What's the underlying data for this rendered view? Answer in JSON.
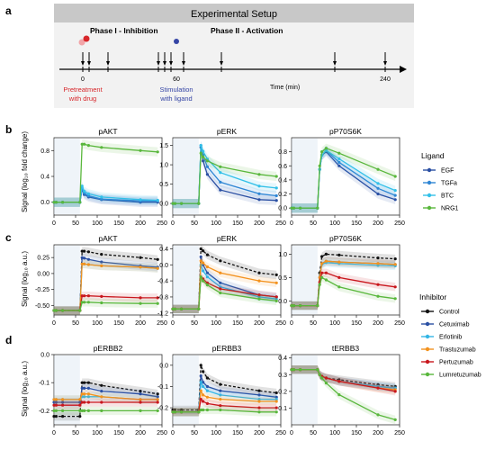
{
  "panel_letters": [
    "a",
    "b",
    "c",
    "d"
  ],
  "experimental_setup": {
    "title": "Experimental Setup",
    "phase1": "Phase I - Inhibition",
    "phase2": "Phase II - Activation",
    "tick_0": "0",
    "tick_60": "60",
    "tick_240": "240",
    "time_label": "Time (min)",
    "pretreatment_line1": "Pretreatment",
    "pretreatment_line2": "with drug",
    "stimulation_line1": "Stimulation",
    "stimulation_line2": "with ligand",
    "pretreatment_color": "#d7262a",
    "stimulation_color": "#3545a5",
    "arrow_times_min": [
      0,
      5,
      20,
      60,
      65,
      70,
      80,
      110,
      200,
      240
    ]
  },
  "legend_ligand": {
    "title": "Ligand",
    "items": [
      {
        "label": "EGF",
        "color": "#2a4fa3"
      },
      {
        "label": "TGFa",
        "color": "#2e86d4"
      },
      {
        "label": "BTC",
        "color": "#33c0e8"
      },
      {
        "label": "NRG1",
        "color": "#59b73c"
      }
    ]
  },
  "legend_inhibitor": {
    "title": "Inhibitor",
    "items": [
      {
        "label": "Control",
        "color": "#111111"
      },
      {
        "label": "Cetuximab",
        "color": "#2a4fa3"
      },
      {
        "label": "Erlotinib",
        "color": "#33b5e5"
      },
      {
        "label": "Trastuzumab",
        "color": "#f3921e"
      },
      {
        "label": "Pertuzumab",
        "color": "#c9171d"
      },
      {
        "label": "Lumretuzumab",
        "color": "#59b73c"
      }
    ]
  },
  "row_b_ylabel": "Signal (log₁₀ fold change)",
  "row_c_ylabel": "Signal (log₁₀ a.u.)",
  "row_d_ylabel": "Signal (log₁₀ a.u.)",
  "time_axis_ticks": [
    "0",
    "50",
    "100",
    "150",
    "200",
    "250"
  ],
  "chart_data": [
    {
      "type": "line",
      "panel": "b",
      "title": "pAKT",
      "xlim": [
        0,
        250
      ],
      "ylim": [
        -0.2,
        1.0
      ],
      "yticks": [
        {
          "v": 0.0,
          "l": "0.0"
        },
        {
          "v": 0.4,
          "l": "0.4"
        },
        {
          "v": 0.8,
          "l": "0.8"
        }
      ],
      "x": [
        0,
        5,
        20,
        60,
        65,
        70,
        80,
        110,
        200,
        240
      ],
      "series": [
        {
          "name": "EGF",
          "values": [
            0,
            0,
            0,
            0,
            0.2,
            0.12,
            0.08,
            0.04,
            0.0,
            0.0
          ]
        },
        {
          "name": "TGFa",
          "values": [
            0,
            0,
            0,
            0,
            0.22,
            0.14,
            0.1,
            0.05,
            0.02,
            0.02
          ]
        },
        {
          "name": "BTC",
          "values": [
            0,
            0,
            0,
            0,
            0.25,
            0.17,
            0.13,
            0.08,
            0.04,
            0.03
          ]
        },
        {
          "name": "NRG1",
          "values": [
            0,
            0,
            0,
            0,
            0.9,
            0.9,
            0.88,
            0.85,
            0.8,
            0.78
          ]
        }
      ]
    },
    {
      "type": "line",
      "panel": "b",
      "title": "pERK",
      "xlim": [
        0,
        250
      ],
      "ylim": [
        -0.3,
        1.7
      ],
      "yticks": [
        {
          "v": 0.0,
          "l": "0.0"
        },
        {
          "v": 0.5,
          "l": "0.5"
        },
        {
          "v": 1.0,
          "l": "1.0"
        },
        {
          "v": 1.5,
          "l": "1.5"
        }
      ],
      "x": [
        0,
        5,
        20,
        60,
        65,
        70,
        80,
        110,
        200,
        240
      ],
      "series": [
        {
          "name": "EGF",
          "values": [
            0,
            0,
            0,
            0,
            1.45,
            1.1,
            0.75,
            0.35,
            0.1,
            0.08
          ]
        },
        {
          "name": "TGFa",
          "values": [
            0,
            0,
            0,
            0,
            1.5,
            1.25,
            0.95,
            0.55,
            0.25,
            0.2
          ]
        },
        {
          "name": "BTC",
          "values": [
            0,
            0,
            0,
            0,
            1.5,
            1.35,
            1.15,
            0.8,
            0.45,
            0.4
          ]
        },
        {
          "name": "NRG1",
          "values": [
            0,
            0,
            0,
            0,
            1.3,
            1.2,
            1.1,
            0.95,
            0.75,
            0.7
          ]
        }
      ]
    },
    {
      "type": "line",
      "panel": "b",
      "title": "pP70S6K",
      "xlim": [
        0,
        250
      ],
      "ylim": [
        -0.1,
        1.0
      ],
      "yticks": [
        {
          "v": 0.0,
          "l": "0.0"
        },
        {
          "v": 0.2,
          "l": "0.2"
        },
        {
          "v": 0.4,
          "l": "0.4"
        },
        {
          "v": 0.6,
          "l": "0.6"
        },
        {
          "v": 0.8,
          "l": "0.8"
        }
      ],
      "x": [
        0,
        5,
        20,
        60,
        65,
        70,
        80,
        110,
        200,
        240
      ],
      "series": [
        {
          "name": "EGF",
          "values": [
            0,
            0,
            0,
            0,
            0.55,
            0.75,
            0.8,
            0.6,
            0.2,
            0.12
          ]
        },
        {
          "name": "TGFa",
          "values": [
            0,
            0,
            0,
            0,
            0.55,
            0.75,
            0.82,
            0.65,
            0.28,
            0.18
          ]
        },
        {
          "name": "BTC",
          "values": [
            0,
            0,
            0,
            0,
            0.55,
            0.75,
            0.82,
            0.7,
            0.35,
            0.25
          ]
        },
        {
          "name": "NRG1",
          "values": [
            0,
            0,
            0,
            0,
            0.6,
            0.8,
            0.85,
            0.78,
            0.55,
            0.45
          ]
        }
      ]
    },
    {
      "type": "line",
      "panel": "c",
      "title": "pAKT",
      "xlim": [
        0,
        250
      ],
      "ylim": [
        -0.65,
        0.45
      ],
      "yticks": [
        {
          "v": -0.5,
          "l": "-0.50"
        },
        {
          "v": -0.25,
          "l": "-0.25"
        },
        {
          "v": 0.0,
          "l": "0.00"
        },
        {
          "v": 0.25,
          "l": "0.25"
        }
      ],
      "x": [
        0,
        5,
        20,
        60,
        65,
        70,
        80,
        110,
        200,
        240
      ],
      "series": [
        {
          "name": "Control",
          "values": [
            -0.58,
            -0.58,
            -0.58,
            -0.58,
            0.35,
            0.35,
            0.34,
            0.3,
            0.25,
            0.22
          ]
        },
        {
          "name": "Cetuximab",
          "values": [
            -0.58,
            -0.58,
            -0.58,
            -0.58,
            0.25,
            0.24,
            0.22,
            0.18,
            0.12,
            0.1
          ]
        },
        {
          "name": "Erlotinib",
          "values": [
            -0.58,
            -0.58,
            -0.58,
            -0.58,
            0.15,
            0.15,
            0.14,
            0.12,
            0.1,
            0.08
          ]
        },
        {
          "name": "Trastuzumab",
          "values": [
            -0.58,
            -0.58,
            -0.58,
            -0.58,
            0.15,
            0.15,
            0.14,
            0.12,
            0.1,
            0.08
          ]
        },
        {
          "name": "Pertuzumab",
          "values": [
            -0.58,
            -0.58,
            -0.58,
            -0.58,
            -0.35,
            -0.35,
            -0.35,
            -0.36,
            -0.38,
            -0.38
          ]
        },
        {
          "name": "Lumretuzumab",
          "values": [
            -0.58,
            -0.58,
            -0.58,
            -0.58,
            -0.45,
            -0.45,
            -0.45,
            -0.46,
            -0.47,
            -0.47
          ]
        }
      ]
    },
    {
      "type": "line",
      "panel": "c",
      "title": "pERK",
      "xlim": [
        0,
        250
      ],
      "ylim": [
        -1.25,
        0.5
      ],
      "yticks": [
        {
          "v": -1.2,
          "l": "-1.2"
        },
        {
          "v": -0.8,
          "l": "-0.8"
        },
        {
          "v": -0.4,
          "l": "-0.4"
        },
        {
          "v": 0.0,
          "l": "0.0"
        },
        {
          "v": 0.4,
          "l": "0.4"
        }
      ],
      "x": [
        0,
        5,
        20,
        60,
        65,
        70,
        80,
        110,
        200,
        240
      ],
      "series": [
        {
          "name": "Control",
          "values": [
            -1.1,
            -1.1,
            -1.1,
            -1.1,
            0.4,
            0.35,
            0.25,
            0.1,
            -0.2,
            -0.25
          ]
        },
        {
          "name": "Cetuximab",
          "values": [
            -1.1,
            -1.1,
            -1.1,
            -1.1,
            0.2,
            0.0,
            -0.2,
            -0.45,
            -0.75,
            -0.8
          ]
        },
        {
          "name": "Erlotinib",
          "values": [
            -1.1,
            -1.1,
            -1.1,
            -1.1,
            0.0,
            -0.15,
            -0.3,
            -0.55,
            -0.8,
            -0.85
          ]
        },
        {
          "name": "Trastuzumab",
          "values": [
            -1.1,
            -1.1,
            -1.1,
            -1.1,
            0.1,
            0.05,
            -0.05,
            -0.2,
            -0.4,
            -0.45
          ]
        },
        {
          "name": "Pertuzumab",
          "values": [
            -1.1,
            -1.1,
            -1.1,
            -1.1,
            -0.3,
            -0.35,
            -0.45,
            -0.6,
            -0.75,
            -0.8
          ]
        },
        {
          "name": "Lumretuzumab",
          "values": [
            -1.1,
            -1.1,
            -1.1,
            -1.1,
            -0.3,
            -0.4,
            -0.5,
            -0.7,
            -0.85,
            -0.9
          ]
        }
      ]
    },
    {
      "type": "line",
      "panel": "c",
      "title": "pP70S6K",
      "xlim": [
        0,
        250
      ],
      "ylim": [
        -0.3,
        1.2
      ],
      "yticks": [
        {
          "v": 0.0,
          "l": "0.0"
        },
        {
          "v": 0.5,
          "l": "0.5"
        },
        {
          "v": 1.0,
          "l": "1.0"
        }
      ],
      "x": [
        0,
        5,
        20,
        60,
        65,
        70,
        80,
        110,
        200,
        240
      ],
      "series": [
        {
          "name": "Control",
          "values": [
            -0.1,
            -0.1,
            -0.1,
            -0.1,
            0.6,
            0.95,
            1.0,
            0.98,
            0.92,
            0.9
          ]
        },
        {
          "name": "Cetuximab",
          "values": [
            -0.1,
            -0.1,
            -0.1,
            -0.1,
            0.5,
            0.8,
            0.85,
            0.83,
            0.8,
            0.78
          ]
        },
        {
          "name": "Erlotinib",
          "values": [
            -0.1,
            -0.1,
            -0.1,
            -0.1,
            0.5,
            0.78,
            0.82,
            0.8,
            0.76,
            0.75
          ]
        },
        {
          "name": "Trastuzumab",
          "values": [
            -0.1,
            -0.1,
            -0.1,
            -0.1,
            0.5,
            0.8,
            0.85,
            0.83,
            0.8,
            0.78
          ]
        },
        {
          "name": "Pertuzumab",
          "values": [
            -0.1,
            -0.1,
            -0.1,
            -0.1,
            0.4,
            0.6,
            0.6,
            0.5,
            0.35,
            0.3
          ]
        },
        {
          "name": "Lumretuzumab",
          "values": [
            -0.1,
            -0.1,
            -0.1,
            -0.1,
            0.35,
            0.5,
            0.45,
            0.3,
            0.1,
            0.05
          ]
        }
      ]
    },
    {
      "type": "line",
      "panel": "d",
      "title": "pERBB2",
      "xlim": [
        0,
        250
      ],
      "ylim": [
        -0.25,
        0.0
      ],
      "yticks": [
        {
          "v": -0.2,
          "l": "-0.2"
        },
        {
          "v": -0.1,
          "l": "-0.1"
        },
        {
          "v": 0.0,
          "l": "0.0"
        }
      ],
      "x": [
        0,
        5,
        20,
        60,
        65,
        70,
        80,
        110,
        200,
        240
      ],
      "series": [
        {
          "name": "Control",
          "values": [
            -0.22,
            -0.22,
            -0.22,
            -0.22,
            -0.1,
            -0.1,
            -0.1,
            -0.11,
            -0.13,
            -0.14
          ]
        },
        {
          "name": "Cetuximab",
          "values": [
            -0.17,
            -0.17,
            -0.17,
            -0.17,
            -0.12,
            -0.12,
            -0.12,
            -0.13,
            -0.14,
            -0.15
          ]
        },
        {
          "name": "Erlotinib",
          "values": [
            -0.16,
            -0.16,
            -0.16,
            -0.16,
            -0.15,
            -0.15,
            -0.15,
            -0.15,
            -0.16,
            -0.16
          ]
        },
        {
          "name": "Trastuzumab",
          "values": [
            -0.16,
            -0.16,
            -0.16,
            -0.16,
            -0.14,
            -0.14,
            -0.14,
            -0.15,
            -0.16,
            -0.16
          ]
        },
        {
          "name": "Pertuzumab",
          "values": [
            -0.18,
            -0.18,
            -0.18,
            -0.18,
            -0.17,
            -0.17,
            -0.17,
            -0.17,
            -0.17,
            -0.17
          ]
        },
        {
          "name": "Lumretuzumab",
          "values": [
            -0.2,
            -0.2,
            -0.2,
            -0.2,
            -0.2,
            -0.2,
            -0.2,
            -0.2,
            -0.2,
            -0.2
          ]
        }
      ]
    },
    {
      "type": "line",
      "panel": "d",
      "title": "pERBB3",
      "xlim": [
        0,
        250
      ],
      "ylim": [
        -0.28,
        0.05
      ],
      "yticks": [
        {
          "v": -0.2,
          "l": "-0.2"
        },
        {
          "v": -0.1,
          "l": "-0.1"
        },
        {
          "v": 0.0,
          "l": "0.0"
        }
      ],
      "x": [
        0,
        5,
        20,
        60,
        65,
        70,
        80,
        110,
        200,
        240
      ],
      "series": [
        {
          "name": "Control",
          "values": [
            -0.21,
            -0.21,
            -0.21,
            -0.21,
            0.0,
            -0.03,
            -0.06,
            -0.09,
            -0.12,
            -0.13
          ]
        },
        {
          "name": "Cetuximab",
          "values": [
            -0.22,
            -0.22,
            -0.22,
            -0.22,
            -0.05,
            -0.08,
            -0.1,
            -0.12,
            -0.14,
            -0.15
          ]
        },
        {
          "name": "Erlotinib",
          "values": [
            -0.22,
            -0.22,
            -0.22,
            -0.22,
            -0.08,
            -0.1,
            -0.12,
            -0.14,
            -0.16,
            -0.16
          ]
        },
        {
          "name": "Trastuzumab",
          "values": [
            -0.22,
            -0.22,
            -0.22,
            -0.22,
            -0.12,
            -0.14,
            -0.15,
            -0.16,
            -0.17,
            -0.17
          ]
        },
        {
          "name": "Pertuzumab",
          "values": [
            -0.22,
            -0.22,
            -0.22,
            -0.22,
            -0.16,
            -0.17,
            -0.18,
            -0.19,
            -0.2,
            -0.2
          ]
        },
        {
          "name": "Lumretuzumab",
          "values": [
            -0.22,
            -0.22,
            -0.22,
            -0.22,
            -0.21,
            -0.21,
            -0.21,
            -0.21,
            -0.22,
            -0.22
          ]
        }
      ]
    },
    {
      "type": "line",
      "panel": "d",
      "title": "tERBB3",
      "xlim": [
        0,
        250
      ],
      "ylim": [
        0.0,
        0.42
      ],
      "yticks": [
        {
          "v": 0.1,
          "l": "0.1"
        },
        {
          "v": 0.2,
          "l": "0.2"
        },
        {
          "v": 0.3,
          "l": "0.3"
        },
        {
          "v": 0.4,
          "l": "0.4"
        }
      ],
      "x": [
        0,
        5,
        20,
        60,
        65,
        70,
        80,
        110,
        200,
        240
      ],
      "series": [
        {
          "name": "Control",
          "values": [
            0.33,
            0.33,
            0.33,
            0.33,
            0.3,
            0.29,
            0.28,
            0.27,
            0.24,
            0.23
          ]
        },
        {
          "name": "Cetuximab",
          "values": [
            0.33,
            0.33,
            0.33,
            0.33,
            0.3,
            0.29,
            0.28,
            0.26,
            0.23,
            0.22
          ]
        },
        {
          "name": "Erlotinib",
          "values": [
            0.33,
            0.33,
            0.33,
            0.33,
            0.3,
            0.29,
            0.28,
            0.26,
            0.23,
            0.22
          ]
        },
        {
          "name": "Trastuzumab",
          "values": [
            0.33,
            0.33,
            0.33,
            0.33,
            0.3,
            0.29,
            0.28,
            0.26,
            0.22,
            0.21
          ]
        },
        {
          "name": "Pertuzumab",
          "values": [
            0.33,
            0.33,
            0.33,
            0.33,
            0.3,
            0.29,
            0.28,
            0.26,
            0.22,
            0.2
          ]
        },
        {
          "name": "Lumretuzumab",
          "values": [
            0.33,
            0.33,
            0.33,
            0.33,
            0.3,
            0.28,
            0.25,
            0.18,
            0.06,
            0.03
          ]
        }
      ]
    }
  ]
}
